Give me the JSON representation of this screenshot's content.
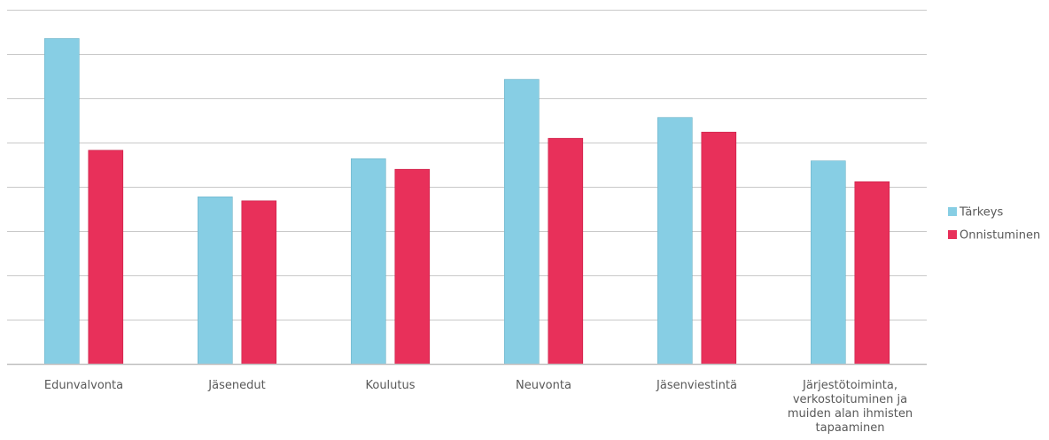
{
  "chart_data": {
    "type": "bar",
    "categories": [
      [
        "Edunvalvonta"
      ],
      [
        "Jäsenedut"
      ],
      [
        "Koulutus"
      ],
      [
        "Neuvonta"
      ],
      [
        "Jäsenviestintä"
      ],
      [
        "Järjestötoiminta,",
        "verkostoituminen ja",
        "muiden alan ihmisten",
        "tapaaminen"
      ]
    ],
    "series": [
      {
        "name": "Tärkeys",
        "color": "#87CEE4",
        "values": [
          7.35,
          3.78,
          4.64,
          6.43,
          5.57,
          4.59
        ]
      },
      {
        "name": "Onnistuminen",
        "color": "#E8305A",
        "values": [
          4.83,
          3.69,
          4.4,
          5.1,
          5.24,
          4.12
        ]
      }
    ],
    "ylim": [
      0,
      8
    ],
    "grid": true,
    "legend_position": "right"
  }
}
